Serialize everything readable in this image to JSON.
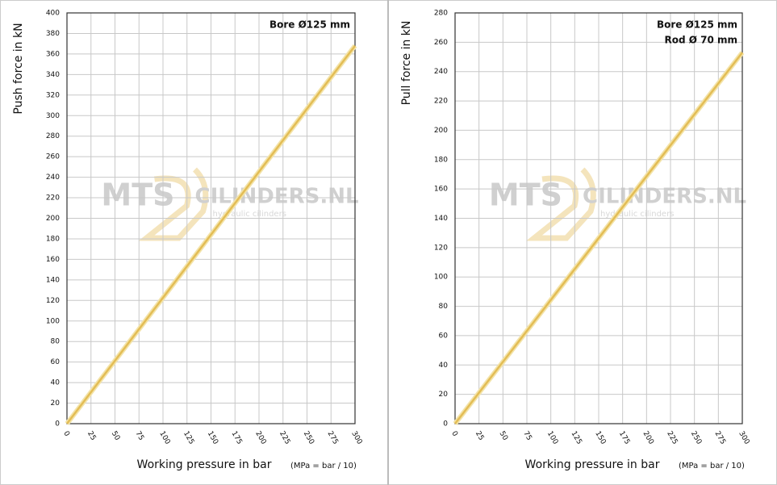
{
  "chart_data": [
    {
      "type": "line",
      "y_label": "Push force in kN",
      "x_label": "Working pressure in bar",
      "x_note": "(MPa = bar / 10)",
      "annotations": [
        "Bore Ø125 mm"
      ],
      "watermark": {
        "brand": "MTS",
        "site": "CILINDERS.NL",
        "tagline": "hydraulic cilinders"
      },
      "x": [
        0,
        300
      ],
      "series": [
        {
          "color": "#e3bd55",
          "values": [
            0,
            368
          ]
        }
      ],
      "xlim": [
        0,
        300
      ],
      "xticks": [
        0,
        25,
        50,
        75,
        100,
        125,
        150,
        175,
        200,
        225,
        250,
        275,
        300
      ],
      "ylim": [
        0,
        400
      ],
      "yticks": [
        0,
        20,
        40,
        60,
        80,
        100,
        120,
        140,
        160,
        180,
        200,
        220,
        240,
        260,
        280,
        300,
        320,
        340,
        360,
        380,
        400
      ],
      "grid": true
    },
    {
      "type": "line",
      "y_label": "Pull force in kN",
      "x_label": "Working pressure in bar",
      "x_note": "(MPa = bar / 10)",
      "annotations": [
        "Bore Ø125 mm",
        "Rod  Ø  70 mm"
      ],
      "watermark": {
        "brand": "MTS",
        "site": "CILINDERS.NL",
        "tagline": "hydraulic cilinders"
      },
      "x": [
        0,
        300
      ],
      "series": [
        {
          "color": "#e3bd55",
          "values": [
            0,
            253
          ]
        }
      ],
      "xlim": [
        0,
        300
      ],
      "xticks": [
        0,
        25,
        50,
        75,
        100,
        125,
        150,
        175,
        200,
        225,
        250,
        275,
        300
      ],
      "ylim": [
        0,
        280
      ],
      "yticks": [
        0,
        20,
        40,
        60,
        80,
        100,
        120,
        140,
        160,
        180,
        200,
        220,
        240,
        260,
        280
      ],
      "grid": true
    }
  ]
}
